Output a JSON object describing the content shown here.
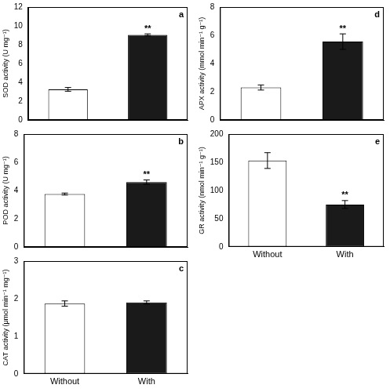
{
  "chart_data": [
    {
      "type": "bar",
      "title": "a",
      "y_label": "SOD activity (U mg⁻¹)",
      "categories": [
        "Without",
        "With"
      ],
      "values": [
        3.25,
        9.05
      ],
      "errors": [
        0.2,
        0.1
      ],
      "colors": [
        "#ffffff",
        "#1a1a1a"
      ],
      "ylim": [
        0,
        12
      ],
      "yticks": [
        0,
        2,
        4,
        6,
        8,
        10,
        12
      ],
      "grid": false,
      "tick_labels": "y",
      "annotations": [
        {
          "category": "With",
          "text": "**"
        }
      ]
    },
    {
      "type": "bar",
      "title": "b",
      "y_label": "POD activity (U mg⁻¹)",
      "categories": [
        "Without",
        "With"
      ],
      "values": [
        3.75,
        4.6
      ],
      "errors": [
        0.07,
        0.15
      ],
      "colors": [
        "#ffffff",
        "#1a1a1a"
      ],
      "ylim": [
        0,
        8
      ],
      "yticks": [
        0,
        2,
        4,
        6,
        8
      ],
      "grid": false,
      "tick_labels": "y",
      "annotations": [
        {
          "category": "With",
          "text": "**"
        }
      ]
    },
    {
      "type": "bar",
      "title": "c",
      "y_label": "CAT activity (μmol min⁻¹ mg⁻¹)",
      "categories": [
        "Without",
        "With"
      ],
      "values": [
        1.87,
        1.9
      ],
      "errors": [
        0.07,
        0.04
      ],
      "colors": [
        "#ffffff",
        "#1a1a1a"
      ],
      "ylim": [
        0,
        3
      ],
      "yticks": [
        0,
        1,
        2,
        3
      ],
      "grid": false
    },
    {
      "type": "bar",
      "title": "d",
      "y_label": "APX activity (mmol min⁻¹ g⁻¹)",
      "categories": [
        "Without",
        "With"
      ],
      "values": [
        2.3,
        5.55
      ],
      "errors": [
        0.18,
        0.55
      ],
      "colors": [
        "#ffffff",
        "#1a1a1a"
      ],
      "ylim": [
        0,
        8
      ],
      "yticks": [
        0,
        2,
        4,
        6,
        8
      ],
      "grid": false,
      "tick_labels": "y",
      "annotations": [
        {
          "category": "With",
          "text": "**"
        }
      ]
    },
    {
      "type": "bar",
      "title": "e",
      "y_label": "GR activity (nmol min⁻¹ g⁻¹)",
      "categories": [
        "Without",
        "With"
      ],
      "values": [
        153,
        75
      ],
      "errors": [
        14,
        7
      ],
      "colors": [
        "#ffffff",
        "#1a1a1a"
      ],
      "ylim": [
        0,
        200
      ],
      "yticks": [
        0,
        50,
        100,
        150,
        200
      ],
      "grid": false,
      "annotations": [
        {
          "category": "With",
          "text": "**"
        }
      ]
    }
  ]
}
